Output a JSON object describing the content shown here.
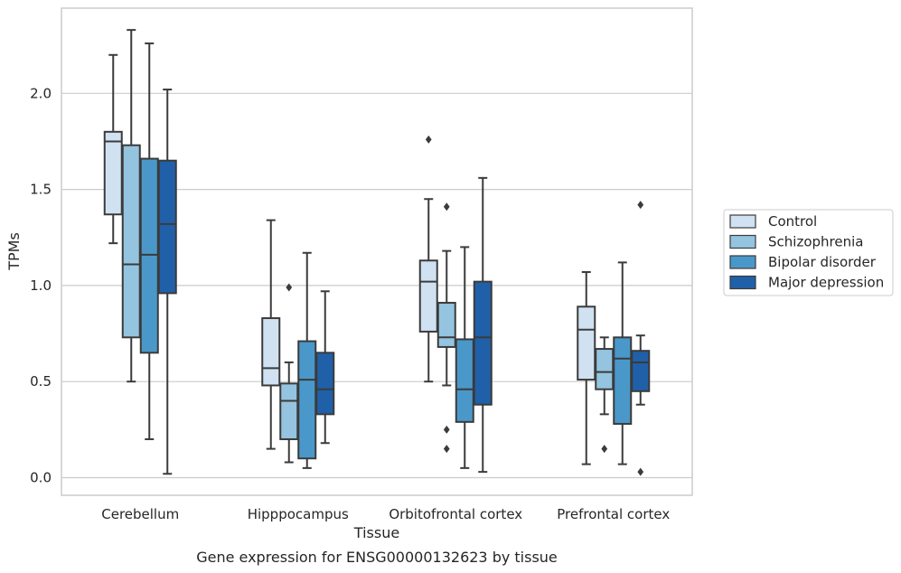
{
  "chart_data": {
    "type": "boxplot",
    "xlabel": "Tissue",
    "ylabel": "TPMs",
    "caption": "Gene expression for ENSG00000132623 by tissue",
    "ylim": [
      -0.09,
      2.45
    ],
    "yticks": [
      0.0,
      0.5,
      1.0,
      1.5,
      2.0
    ],
    "ytick_labels": [
      "0.0",
      "0.5",
      "1.0",
      "1.5",
      "2.0"
    ],
    "grid": "horizontal",
    "legend_position": "right",
    "categories": [
      "Cerebellum",
      "Hipppocampus",
      "Orbitofrontal cortex",
      "Prefrontal cortex"
    ],
    "series": [
      {
        "name": "Control",
        "color": "#d0e1f2",
        "boxes": [
          {
            "whislo": 1.22,
            "q1": 1.37,
            "med": 1.75,
            "q3": 1.8,
            "whishi": 2.2,
            "fliers": []
          },
          {
            "whislo": 0.15,
            "q1": 0.48,
            "med": 0.57,
            "q3": 0.83,
            "whishi": 1.34,
            "fliers": []
          },
          {
            "whislo": 0.5,
            "q1": 0.76,
            "med": 1.02,
            "q3": 1.13,
            "whishi": 1.45,
            "fliers": [
              1.76
            ]
          },
          {
            "whislo": 0.07,
            "q1": 0.51,
            "med": 0.77,
            "q3": 0.89,
            "whishi": 1.07,
            "fliers": []
          }
        ]
      },
      {
        "name": "Schizophrenia",
        "color": "#94c4df",
        "boxes": [
          {
            "whislo": 0.5,
            "q1": 0.73,
            "med": 1.11,
            "q3": 1.73,
            "whishi": 2.33,
            "fliers": []
          },
          {
            "whislo": 0.08,
            "q1": 0.2,
            "med": 0.4,
            "q3": 0.49,
            "whishi": 0.6,
            "fliers": [
              0.99
            ]
          },
          {
            "whislo": 0.48,
            "q1": 0.68,
            "med": 0.73,
            "q3": 0.91,
            "whishi": 1.18,
            "fliers": [
              1.41,
              0.25,
              0.15
            ]
          },
          {
            "whislo": 0.33,
            "q1": 0.46,
            "med": 0.55,
            "q3": 0.67,
            "whishi": 0.73,
            "fliers": [
              0.15
            ]
          }
        ]
      },
      {
        "name": "Bipolar disorder",
        "color": "#4a98c9",
        "boxes": [
          {
            "whislo": 0.2,
            "q1": 0.65,
            "med": 1.16,
            "q3": 1.66,
            "whishi": 2.26,
            "fliers": []
          },
          {
            "whislo": 0.05,
            "q1": 0.1,
            "med": 0.51,
            "q3": 0.71,
            "whishi": 1.17,
            "fliers": []
          },
          {
            "whislo": 0.05,
            "q1": 0.29,
            "med": 0.46,
            "q3": 0.72,
            "whishi": 1.2,
            "fliers": []
          },
          {
            "whislo": 0.07,
            "q1": 0.28,
            "med": 0.62,
            "q3": 0.73,
            "whishi": 1.12,
            "fliers": []
          }
        ]
      },
      {
        "name": "Major depression",
        "color": "#2060a8",
        "boxes": [
          {
            "whislo": 0.02,
            "q1": 0.96,
            "med": 1.32,
            "q3": 1.65,
            "whishi": 2.02,
            "fliers": []
          },
          {
            "whislo": 0.18,
            "q1": 0.33,
            "med": 0.46,
            "q3": 0.65,
            "whishi": 0.97,
            "fliers": []
          },
          {
            "whislo": 0.03,
            "q1": 0.38,
            "med": 0.73,
            "q3": 1.02,
            "whishi": 1.56,
            "fliers": []
          },
          {
            "whislo": 0.38,
            "q1": 0.45,
            "med": 0.6,
            "q3": 0.66,
            "whishi": 0.74,
            "fliers": [
              1.42,
              0.03
            ]
          }
        ]
      }
    ],
    "colors": {
      "line": "#3b3b3b",
      "grid": "#cccccc",
      "frame": "#cccccc"
    }
  }
}
